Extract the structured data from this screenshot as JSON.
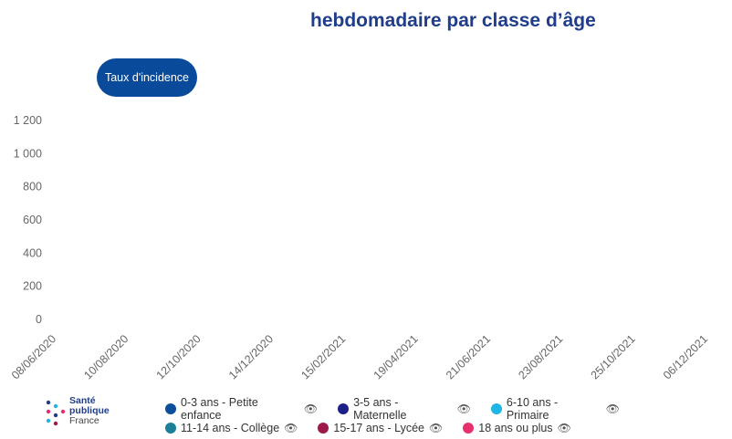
{
  "header": {
    "title": "hebdomadaire par classe d’âge",
    "tab_label": "Taux d'incidence"
  },
  "logo": {
    "line1": "Santé",
    "line2": "publique",
    "line3": "France"
  },
  "chart_data": {
    "type": "line",
    "title": "",
    "xlabel": "",
    "ylabel": "",
    "yticks": [
      "0",
      "200",
      "400",
      "600",
      "800",
      "1 000",
      "1 200"
    ],
    "ylim": [
      0,
      1200
    ],
    "xticks": [
      "08/06/2020",
      "10/08/2020",
      "12/10/2020",
      "14/12/2020",
      "15/02/2021",
      "19/04/2021",
      "21/06/2021",
      "23/08/2021",
      "25/10/2021",
      "06/12/2021"
    ],
    "grid": false,
    "legend_position": "bottom"
  },
  "legend": [
    {
      "label": "0-3 ans - Petite enfance",
      "color": "#0b4f9c",
      "icon": "eye-icon"
    },
    {
      "label": "3-5 ans - Maternelle",
      "color": "#1d2086",
      "icon": "eye-icon"
    },
    {
      "label": "6-10 ans - Primaire",
      "color": "#1fb5e6",
      "icon": "eye-icon"
    },
    {
      "label": "11-14 ans - Collège",
      "color": "#1a7f97",
      "icon": "eye-icon"
    },
    {
      "label": "15-17 ans - Lycée",
      "color": "#9b1a4a",
      "icon": "eye-icon"
    },
    {
      "label": "18 ans ou plus",
      "color": "#e8306f",
      "icon": "eye-icon"
    }
  ]
}
